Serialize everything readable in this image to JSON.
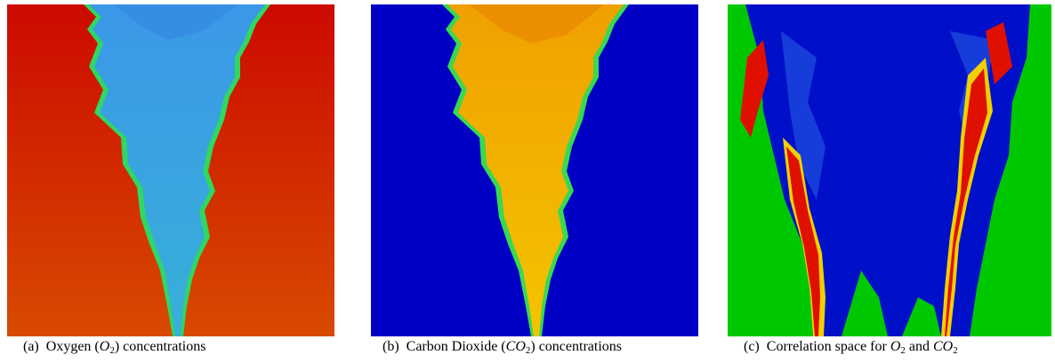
{
  "figures": [
    {
      "id": "a",
      "caption": {
        "label": "(a)",
        "pre": "Oxygen (",
        "var": "O",
        "sub": "2",
        "post": ") concentrations"
      },
      "colors": {
        "background": "#d41400",
        "plume": "#36a4e0",
        "edge": "#2fd860"
      }
    },
    {
      "id": "b",
      "caption": {
        "label": "(b)",
        "pre": "Carbon Dioxide (",
        "var": "CO",
        "sub": "2",
        "post": ") concentrations"
      },
      "colors": {
        "background": "#0000c4",
        "plume": "#f2b000",
        "edge": "#3ad850"
      }
    },
    {
      "id": "c",
      "caption": {
        "label": "(c)",
        "pre": "Correlation space for ",
        "var1": "O",
        "sub1": "2",
        "mid": " and ",
        "var2": "CO",
        "sub2": "2"
      },
      "colors": {
        "background": "#00c800",
        "plume": "#0010c8",
        "hot": "#e01000",
        "warm": "#f0d000"
      }
    }
  ]
}
